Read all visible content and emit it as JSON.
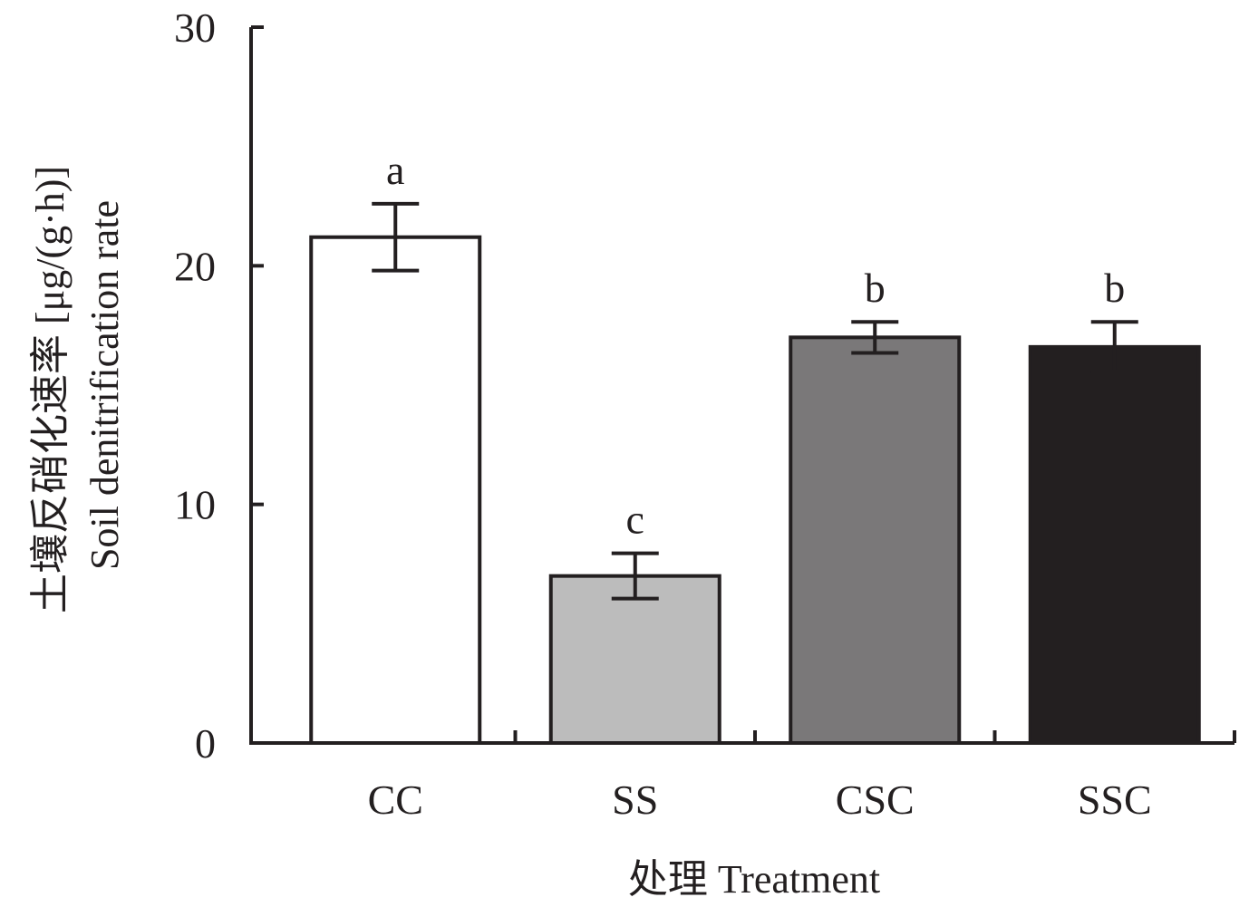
{
  "chart_data": {
    "type": "bar",
    "categories": [
      "CC",
      "SS",
      "CSC",
      "SSC"
    ],
    "values": [
      21.2,
      7.0,
      17.0,
      16.6
    ],
    "errors": [
      1.4,
      0.95,
      0.65,
      1.05
    ],
    "significance": [
      "a",
      "c",
      "b",
      "b"
    ],
    "bar_colors": [
      "#ffffff",
      "#bcbcbc",
      "#7a7879",
      "#231f20"
    ],
    "xlabel": "处理 Treatment",
    "ylabel_cn": "土壤反硝化速率 [μg/(g·h)]",
    "ylabel_en": "Soil denitrification rate",
    "ylim": [
      0,
      30
    ],
    "yticks": [
      "0",
      "10",
      "20",
      "30"
    ],
    "grid": false
  }
}
